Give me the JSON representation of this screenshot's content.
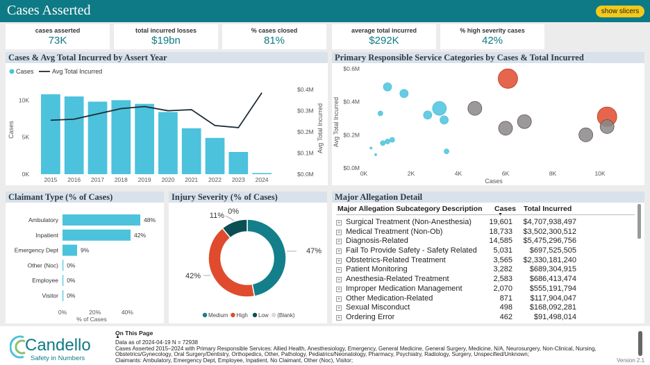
{
  "header": {
    "title": "Cases Asserted",
    "slicer_button": "show slicers"
  },
  "kpis": [
    {
      "label": "cases asserted",
      "value": "73K"
    },
    {
      "label": "total incurred losses",
      "value": "$19bn"
    },
    {
      "label": "% cases closed",
      "value": "81%"
    },
    {
      "label": "average total incurred",
      "value": "$292K"
    },
    {
      "label": "% high severity cases",
      "value": "42%"
    }
  ],
  "colors": {
    "teal": "#0e7a85",
    "bar": "#4cc2dc",
    "red": "#e04b2d",
    "gray": "#888888",
    "yellow": "#f4c91c"
  },
  "panels": {
    "year_chart": "Cases & Avg Total Incurred by Assert Year",
    "service_chart": "Primary Responsible Service Categories by Cases & Total Incurred",
    "claimant_chart": "Claimant Type (% of Cases)",
    "severity_chart": "Injury Severity (% of Cases)",
    "allegation_table": "Major Allegation Detail"
  },
  "chart_data": [
    {
      "type": "bar+line",
      "title": "Cases & Avg Total Incurred by Assert Year",
      "legend": [
        "Cases",
        "Avg Total Incurred"
      ],
      "categories": [
        "2015",
        "2016",
        "2017",
        "2018",
        "2019",
        "2020",
        "2021",
        "2022",
        "2023",
        "2024"
      ],
      "series": [
        {
          "name": "Cases",
          "axis": "left",
          "values": [
            10800,
            10500,
            9800,
            10000,
            9500,
            8400,
            6200,
            4900,
            3000,
            150
          ]
        },
        {
          "name": "Avg Total Incurred",
          "axis": "right",
          "values": [
            0.255,
            0.26,
            0.285,
            0.31,
            0.32,
            0.3,
            0.305,
            0.23,
            0.22,
            0.385
          ]
        }
      ],
      "ylabel": "Cases",
      "y2label": "Avg Total Incurred",
      "yticks": [
        "0K",
        "5K",
        "10K"
      ],
      "y2ticks": [
        "$0.0M",
        "$0.1M",
        "$0.2M",
        "$0.3M",
        "$0.4M"
      ],
      "ylim": [
        0,
        12000
      ],
      "y2lim": [
        0,
        0.42
      ]
    },
    {
      "type": "scatter",
      "title": "Primary Responsible Service Categories by Cases & Total Incurred",
      "xlabel": "Cases",
      "ylabel": "Avg Total Incurred",
      "xticks": [
        "0K",
        "2K",
        "4K",
        "6K",
        "8K",
        "10K"
      ],
      "yticks": [
        "$0.0M",
        "$0.2M",
        "$0.4M",
        "$0.6M"
      ],
      "xlim": [
        0,
        11000
      ],
      "ylim": [
        0,
        0.6
      ],
      "points": [
        {
          "x": 1000,
          "y": 0.49,
          "size": "small",
          "color": "bar"
        },
        {
          "x": 1700,
          "y": 0.45,
          "size": "small",
          "color": "bar"
        },
        {
          "x": 700,
          "y": 0.33,
          "size": "tiny",
          "color": "bar"
        },
        {
          "x": 2700,
          "y": 0.32,
          "size": "small",
          "color": "bar"
        },
        {
          "x": 3200,
          "y": 0.36,
          "size": "medium",
          "color": "bar"
        },
        {
          "x": 3400,
          "y": 0.29,
          "size": "small",
          "color": "bar"
        },
        {
          "x": 3500,
          "y": 0.1,
          "size": "tiny",
          "color": "bar"
        },
        {
          "x": 4700,
          "y": 0.36,
          "size": "medium",
          "color": "gray"
        },
        {
          "x": 6000,
          "y": 0.24,
          "size": "medium",
          "color": "gray"
        },
        {
          "x": 6100,
          "y": 0.54,
          "size": "large",
          "color": "red"
        },
        {
          "x": 6800,
          "y": 0.28,
          "size": "medium",
          "color": "gray"
        },
        {
          "x": 9400,
          "y": 0.2,
          "size": "medium",
          "color": "gray"
        },
        {
          "x": 10300,
          "y": 0.31,
          "size": "large",
          "color": "red"
        },
        {
          "x": 10300,
          "y": 0.25,
          "size": "medium",
          "color": "gray"
        },
        {
          "x": 300,
          "y": 0.12,
          "size": "dot",
          "color": "bar"
        },
        {
          "x": 500,
          "y": 0.08,
          "size": "dot",
          "color": "bar"
        },
        {
          "x": 800,
          "y": 0.15,
          "size": "tiny",
          "color": "bar"
        },
        {
          "x": 1000,
          "y": 0.16,
          "size": "tiny",
          "color": "bar"
        },
        {
          "x": 1200,
          "y": 0.17,
          "size": "tiny",
          "color": "bar"
        }
      ]
    },
    {
      "type": "bar",
      "title": "Claimant Type (% of Cases)",
      "categories": [
        "Ambulatory",
        "Inpatient",
        "Emergency Dept",
        "Other (Noc)",
        "Employee",
        "Visitor"
      ],
      "values": [
        48,
        42,
        9,
        0,
        0,
        0
      ],
      "data_labels": [
        "48%",
        "42%",
        "9%",
        "0%",
        "0%",
        "0%"
      ],
      "xticks": [
        "0%",
        "20%",
        "40%"
      ],
      "xlabel": "% of Cases",
      "xlim": [
        0,
        60
      ]
    },
    {
      "type": "pie",
      "title": "Injury Severity (% of Cases)",
      "labels": [
        "Medium",
        "High",
        "Low",
        "(Blank)"
      ],
      "values": [
        47,
        42,
        11,
        0
      ],
      "data_labels": [
        "47%",
        "42%",
        "11%",
        "0%"
      ],
      "colors": [
        "#137f8a",
        "#e04b2d",
        "#0b4f55",
        "#d9d9d9"
      ]
    },
    {
      "type": "table",
      "title": "Major Allegation Detail",
      "columns": [
        "Major Allegation Subcategory Description",
        "Cases",
        "Total Incurred"
      ],
      "rows": [
        [
          "Surgical Treatment (Non-Anesthesia)",
          "19,601",
          "$4,707,938,497"
        ],
        [
          "Medical Treatment (Non-Ob)",
          "18,733",
          "$3,502,300,512"
        ],
        [
          "Diagnosis-Related",
          "14,585",
          "$5,475,296,756"
        ],
        [
          "Fail To Provide Safety - Safety Related",
          "5,031",
          "$697,525,505"
        ],
        [
          "Obstetrics-Related Treatment",
          "3,565",
          "$2,330,181,240"
        ],
        [
          "Patient Monitoring",
          "3,282",
          "$689,304,915"
        ],
        [
          "Anesthesia-Related Treatment",
          "2,583",
          "$686,413,474"
        ],
        [
          "Improper Medication Management",
          "2,070",
          "$555,191,794"
        ],
        [
          "Other Medication-Related",
          "871",
          "$117,904,047"
        ],
        [
          "Sexual Misconduct",
          "498",
          "$168,092,281"
        ],
        [
          "Ordering Error",
          "462",
          "$91,498,014"
        ]
      ]
    }
  ],
  "footer": {
    "logo_name": "Candello",
    "logo_tagline": "Safety in Numbers",
    "on_this_page": "On This Page",
    "lines": [
      "Data as of 2024-04-19 N = 72938",
      "Cases Asserted 2015–2024 with Primary Responsible Services: Allied Health, Anesthesiology, Emergency, General Medicine, General Surgery, Medicine, N/A, Neurosurgery, Non-Clinical, Nursing,",
      "Obstetrics/Gynecology, Oral Surgery/Dentistry, Orthopedics, Other, Pathology, Pediatrics/Neonatology, Pharmacy, Psychiatry, Radiology, Surgery, Unspecified/Unknown;",
      "Claimants: Ambulatory, Emergency Dept, Employee, Inpatient, No Claimant, Other (Noc), Visitor;"
    ],
    "version": "Version 2.1"
  }
}
